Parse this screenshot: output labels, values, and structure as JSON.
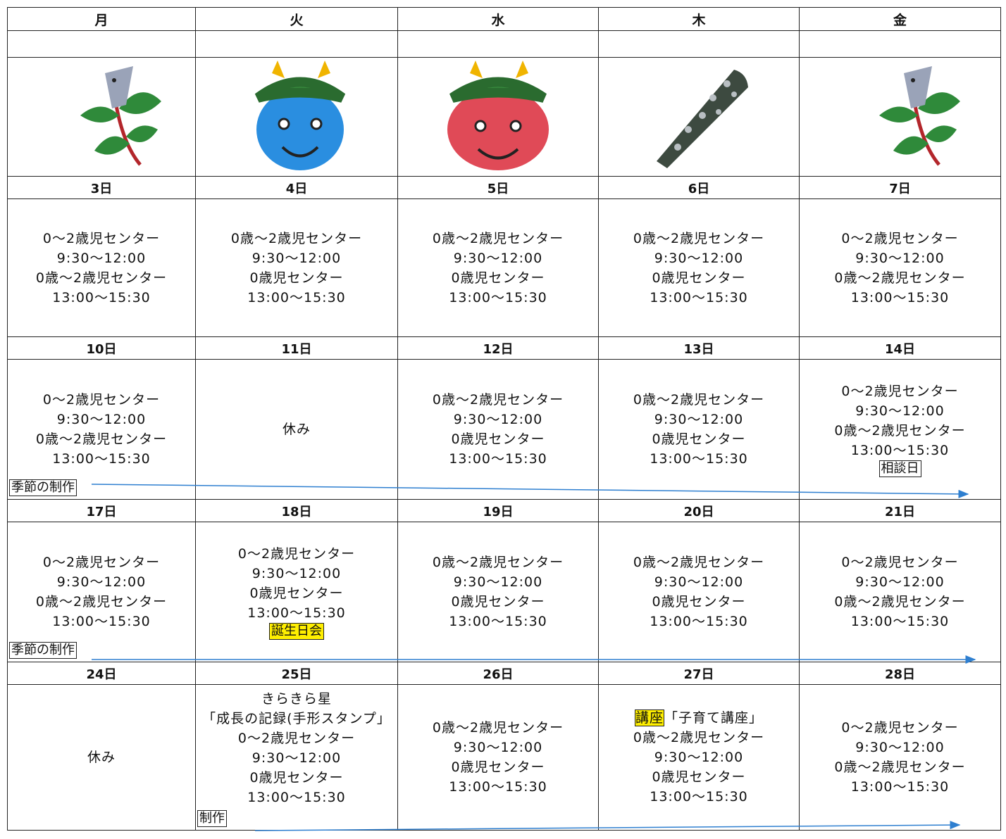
{
  "calendar": {
    "weekdays": [
      "月",
      "火",
      "水",
      "木",
      "金"
    ],
    "weeks": [
      {
        "days": [
          {
            "date": "3日",
            "lines": [
              "0～2歳児センター",
              "9:30～12:00",
              "0歳～2歳児センター",
              "13:00～15:30"
            ]
          },
          {
            "date": "4日",
            "lines": [
              "0歳～2歳児センター",
              "9:30～12:00",
              "0歳児センター",
              "13:00～15:30"
            ]
          },
          {
            "date": "5日",
            "lines": [
              "0歳～2歳児センター",
              "9:30～12:00",
              "0歳児センター",
              "13:00～15:30"
            ]
          },
          {
            "date": "6日",
            "lines": [
              "0歳～2歳児センター",
              "9:30～12:00",
              "0歳児センター",
              "13:00～15:30"
            ]
          },
          {
            "date": "7日",
            "lines": [
              "0～2歳児センター",
              "9:30～12:00",
              "0歳～2歳児センター",
              "13:00～15:30"
            ]
          }
        ]
      },
      {
        "days": [
          {
            "date": "10日",
            "lines": [
              "0～2歳児センター",
              "9:30～12:00",
              "0歳～2歳児センター",
              "13:00～15:30"
            ],
            "tag": "季節の制作"
          },
          {
            "date": "11日",
            "lines": [
              "休み"
            ]
          },
          {
            "date": "12日",
            "lines": [
              "0歳～2歳児センター",
              "9:30～12:00",
              "0歳児センター",
              "13:00～15:30"
            ]
          },
          {
            "date": "13日",
            "lines": [
              "0歳～2歳児センター",
              "9:30～12:00",
              "0歳児センター",
              "13:00～15:30"
            ]
          },
          {
            "date": "14日",
            "lines": [
              "0～2歳児センター",
              "9:30～12:00",
              "0歳～2歳児センター",
              "13:00～15:30"
            ],
            "tag": "相談日"
          }
        ]
      },
      {
        "days": [
          {
            "date": "17日",
            "lines": [
              "0～2歳児センター",
              "9:30～12:00",
              "0歳～2歳児センター",
              "13:00～15:30"
            ],
            "tag": "季節の制作"
          },
          {
            "date": "18日",
            "lines": [
              "0～2歳児センター",
              "9:30～12:00",
              "0歳児センター",
              "13:00～15:30"
            ],
            "tag": "誕生日会",
            "tag_highlight": true
          },
          {
            "date": "19日",
            "lines": [
              "0歳～2歳児センター",
              "9:30～12:00",
              "0歳児センター",
              "13:00～15:30"
            ]
          },
          {
            "date": "20日",
            "lines": [
              "0歳～2歳児センター",
              "9:30～12:00",
              "0歳児センター",
              "13:00～15:30"
            ]
          },
          {
            "date": "21日",
            "lines": [
              "0～2歳児センター",
              "9:30～12:00",
              "0歳～2歳児センター",
              "13:00～15:30"
            ]
          }
        ]
      },
      {
        "days": [
          {
            "date": "24日",
            "lines": [
              "休み"
            ]
          },
          {
            "date": "25日",
            "lines": [
              "きらきら星",
              "「成長の記録(手形スタンプ」",
              "0～2歳児センター",
              "9:30～12:00",
              "0歳児センター",
              "13:00～15:30"
            ],
            "tag": "制作"
          },
          {
            "date": "26日",
            "lines": [
              "0歳～2歳児センター",
              "9:30～12:00",
              "0歳児センター",
              "13:00～15:30"
            ]
          },
          {
            "date": "27日",
            "lead": "講座",
            "lines": [
              "「子育て講座」",
              "0歳～2歳児センター",
              "9:30～12:00",
              "0歳児センター",
              "13:00～15:30"
            ]
          },
          {
            "date": "28日",
            "lines": [
              "0～2歳児センター",
              "9:30～12:00",
              "0歳～2歳児センター",
              "13:00～15:30"
            ]
          }
        ]
      }
    ]
  }
}
